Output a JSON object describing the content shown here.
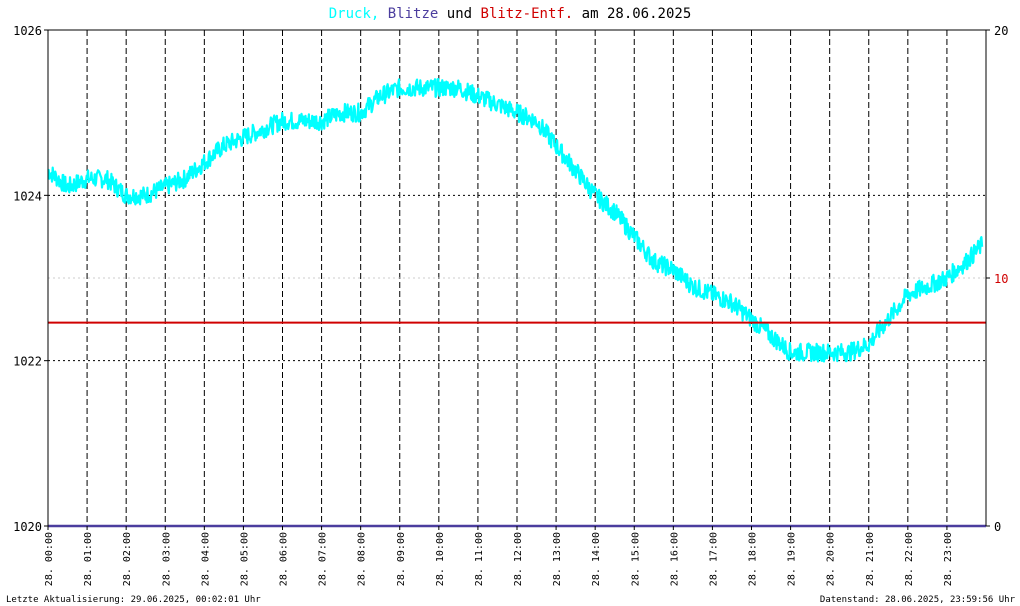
{
  "chart_data": {
    "type": "line",
    "title": {
      "part1": "Druck,",
      "part2": "Blitze",
      "part3": "und",
      "part4": "Blitz-Entf.",
      "part5": "am 28.06.2025"
    },
    "colors": {
      "druck": "#00ffff",
      "blitze": "#4b3d9e",
      "blitz_entf": "#d00000",
      "axis": "#000000",
      "grid": "#000000",
      "grid_light": "#cccccc"
    },
    "left_axis": {
      "ylim": [
        1020,
        1026
      ],
      "ticks": [
        "1020",
        "1022",
        "1024",
        "1026"
      ]
    },
    "right_axis": {
      "ylim": [
        0,
        20
      ],
      "ticks": [
        "0",
        "10",
        "20"
      ]
    },
    "x_axis": {
      "range_hours": [
        0,
        24
      ],
      "tick_labels": [
        "28. 00:00",
        "28. 01:00",
        "28. 02:00",
        "28. 03:00",
        "28. 04:00",
        "28. 05:00",
        "28. 06:00",
        "28. 07:00",
        "28. 08:00",
        "28. 09:00",
        "28. 10:00",
        "28. 11:00",
        "28. 12:00",
        "28. 13:00",
        "28. 14:00",
        "28. 15:00",
        "28. 16:00",
        "28. 17:00",
        "28. 18:00",
        "28. 19:00",
        "28. 20:00",
        "28. 21:00",
        "28. 22:00",
        "28. 23:00"
      ]
    },
    "series": [
      {
        "name": "Druck",
        "axis": "left",
        "x": [
          0,
          0.5,
          1,
          1.5,
          2,
          2.5,
          3,
          3.5,
          4,
          4.5,
          5,
          5.5,
          6,
          6.5,
          7,
          7.5,
          8,
          8.5,
          9,
          9.5,
          10,
          10.5,
          11,
          11.5,
          12,
          12.5,
          13,
          13.5,
          14,
          14.5,
          15,
          15.5,
          16,
          16.5,
          17,
          17.5,
          18,
          18.5,
          19,
          19.5,
          20,
          20.5,
          21,
          21.5,
          22,
          22.5,
          23,
          23.5,
          23.9
        ],
        "y": [
          1024.3,
          1024.1,
          1024.2,
          1024.2,
          1024.0,
          1024.0,
          1024.1,
          1024.2,
          1024.4,
          1024.6,
          1024.7,
          1024.8,
          1024.9,
          1024.9,
          1024.9,
          1025.0,
          1025.0,
          1025.2,
          1025.3,
          1025.3,
          1025.3,
          1025.3,
          1025.2,
          1025.1,
          1025.0,
          1024.9,
          1024.6,
          1024.3,
          1024.0,
          1023.8,
          1023.5,
          1023.2,
          1023.1,
          1022.9,
          1022.8,
          1022.7,
          1022.5,
          1022.3,
          1022.1,
          1022.1,
          1022.1,
          1022.1,
          1022.2,
          1022.5,
          1022.8,
          1022.9,
          1023.0,
          1023.2,
          1023.4
        ]
      },
      {
        "name": "Blitze",
        "axis": "right",
        "x": [
          0,
          24
        ],
        "y": [
          0,
          0
        ]
      },
      {
        "name": "Blitz-Entf.",
        "axis": "right",
        "x": [
          0,
          24
        ],
        "y": [
          8.2,
          8.2
        ]
      }
    ],
    "grid": true,
    "footer_left": "Letzte Aktualisierung: 29.06.2025, 00:02:01 Uhr",
    "footer_right": "Datenstand: 28.06.2025, 23:59:56 Uhr"
  }
}
